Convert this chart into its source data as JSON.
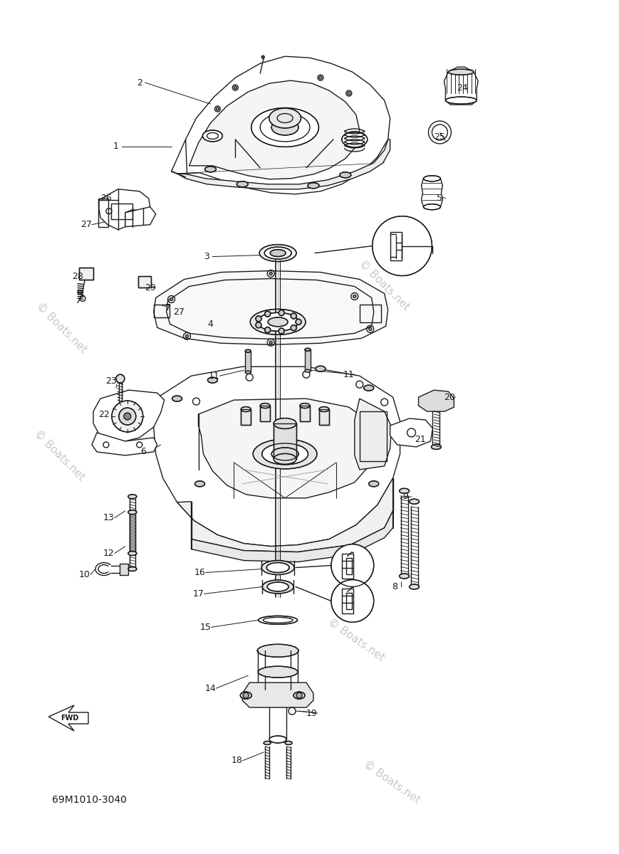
{
  "bg_color": "#ffffff",
  "line_color": "#1a1a1a",
  "lw": 1.0,
  "watermark_color": "#c8c8c8",
  "watermark_text": "© Boats.net",
  "part_number": "69M1010-3040",
  "fig_w": 8.69,
  "fig_h": 12.0,
  "dpi": 100,
  "xlim": [
    0,
    869
  ],
  "ylim": [
    0,
    1200
  ]
}
